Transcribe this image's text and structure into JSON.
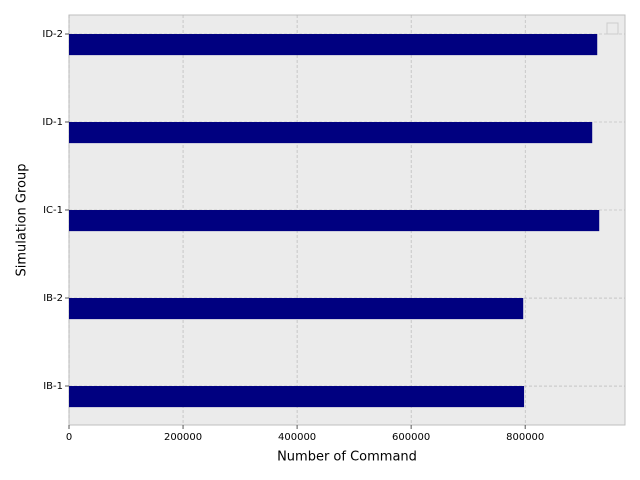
{
  "chart_data": {
    "type": "barh",
    "xlabel": "Number of Command",
    "ylabel": "Simulation Group",
    "categories": [
      "IB-1",
      "IB-2",
      "IC-1",
      "ID-1",
      "ID-2"
    ],
    "values": [
      798000,
      796500,
      929800,
      917500,
      926300
    ],
    "color": "#000080",
    "xlim": [
      0,
      975000
    ],
    "xticks": [
      0,
      200000,
      400000,
      600000,
      800000
    ],
    "grid": true
  }
}
